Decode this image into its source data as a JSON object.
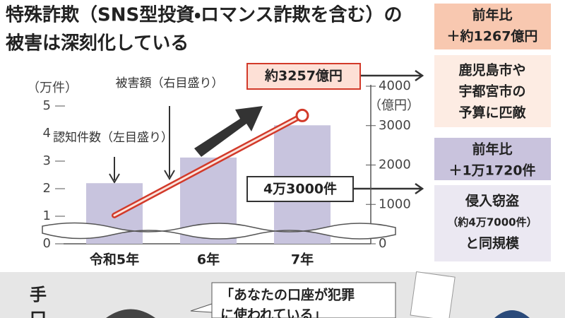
{
  "header": {
    "title": [
      "特殊詐欺（SNS型投資・ロマンス詐欺を含む）の",
      "被害は深刻化している"
    ]
  },
  "chart_data": {
    "type": "bar",
    "categories": [
      "令和5年",
      "6年",
      "7年"
    ],
    "y_label": "（万件）",
    "y2_label": "（億円）",
    "ylim": [
      0,
      5
    ],
    "yticks": [
      0,
      1,
      2,
      3,
      4,
      5
    ],
    "y2lim": [
      0,
      4000
    ],
    "y2ticks": [
      0,
      1000,
      2000,
      3000,
      4000
    ],
    "series": [
      {
        "name": "認知件数（左目盛り）",
        "type": "bar",
        "color": "#c8c4de",
        "values": [
          2.2,
          3.13,
          4.3
        ],
        "value_labels": [
          null,
          null,
          "4万3000件"
        ]
      },
      {
        "name": "被害額（右目盛り）",
        "type": "line",
        "axis": "y2",
        "color": "#d23a2a",
        "values": [
          720,
          1990,
          3257
        ],
        "value_labels": [
          null,
          null,
          "約3257億円"
        ]
      }
    ]
  },
  "panels": [
    {
      "header": [
        "前年比",
        "＋約1267億円"
      ],
      "body": [
        "鹿児島市や",
        "宇都宮市の",
        "予算に匹敵"
      ]
    },
    {
      "header": [
        "前年比",
        "＋1万1720件"
      ],
      "body": [
        "侵入窃盗",
        "（約4万7000件）",
        "と同規模"
      ]
    }
  ],
  "bottom": {
    "heading": [
      "手",
      "口"
    ],
    "speech": [
      "「あなたの口座が犯罪",
      "に使われている」"
    ]
  }
}
